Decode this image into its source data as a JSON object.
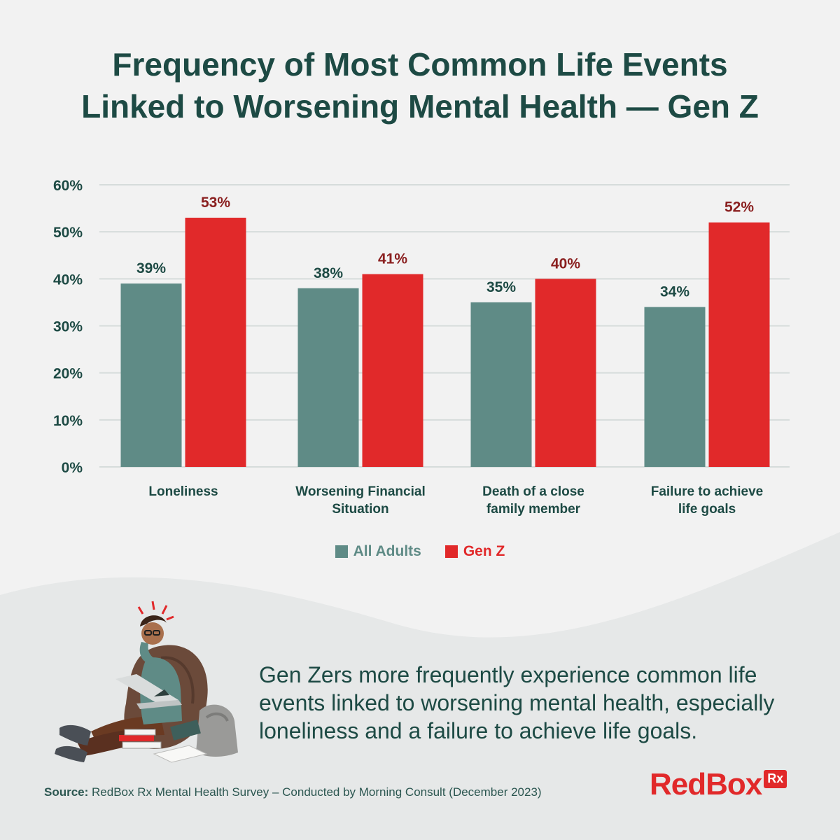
{
  "title": {
    "line1": "Frequency of Most Common Life Events",
    "line2": "Linked to Worsening Mental Health — Gen Z"
  },
  "chart_data": {
    "type": "bar",
    "categories": [
      [
        "Loneliness"
      ],
      [
        "Worsening Financial",
        "Situation"
      ],
      [
        "Death of a close",
        "family member"
      ],
      [
        "Failure to achieve",
        "life goals"
      ]
    ],
    "series": [
      {
        "name": "All Adults",
        "color": "#5f8b86",
        "values": [
          39,
          38,
          35,
          34
        ],
        "labels": [
          "39%",
          "38%",
          "35%",
          "34%"
        ]
      },
      {
        "name": "Gen Z",
        "color": "#e1292a",
        "values": [
          53,
          41,
          40,
          52
        ],
        "labels": [
          "53%",
          "41%",
          "40%",
          "52%"
        ]
      }
    ],
    "ylim": [
      0,
      60
    ],
    "yticks": [
      "0%",
      "10%",
      "20%",
      "30%",
      "40%",
      "50%",
      "60%"
    ],
    "grid": true,
    "legend": "bottom-center",
    "label_colors": {
      "All Adults": "#1d4a44",
      "Gen Z": "#8a1f1f"
    }
  },
  "legend": {
    "all_adults": "All Adults",
    "gen_z": "Gen Z",
    "all_adults_color": "#5f8b86",
    "gen_z_color": "#e1292a"
  },
  "caption": "Gen Zers more frequently experience common life events linked to worsening mental health, especially loneliness and a failure to achieve life goals.",
  "source": {
    "label": "Source:",
    "text": " RedBox Rx Mental Health Survey – Conducted by Morning Consult (December 2023)"
  },
  "logo": {
    "word": "RedBox",
    "badge": "Rx"
  },
  "illustration": {
    "icon": "stressed-student-illustration"
  }
}
